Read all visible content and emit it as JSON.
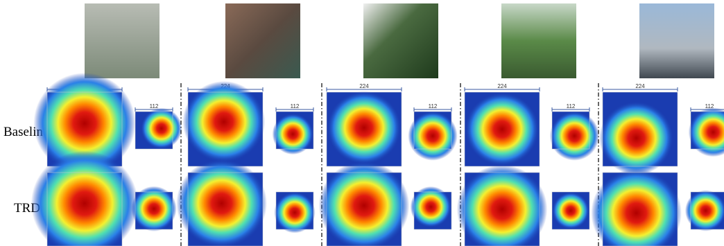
{
  "row_labels": [
    "Baseline",
    "TRD"
  ],
  "columns": [
    {
      "large_size": 224,
      "small_size": 112
    },
    {
      "large_size": 224,
      "small_size": 112
    },
    {
      "large_size": 224,
      "small_size": 112
    },
    {
      "large_size": 224,
      "small_size": 112
    },
    {
      "large_size": 224,
      "small_size": 112
    }
  ]
}
